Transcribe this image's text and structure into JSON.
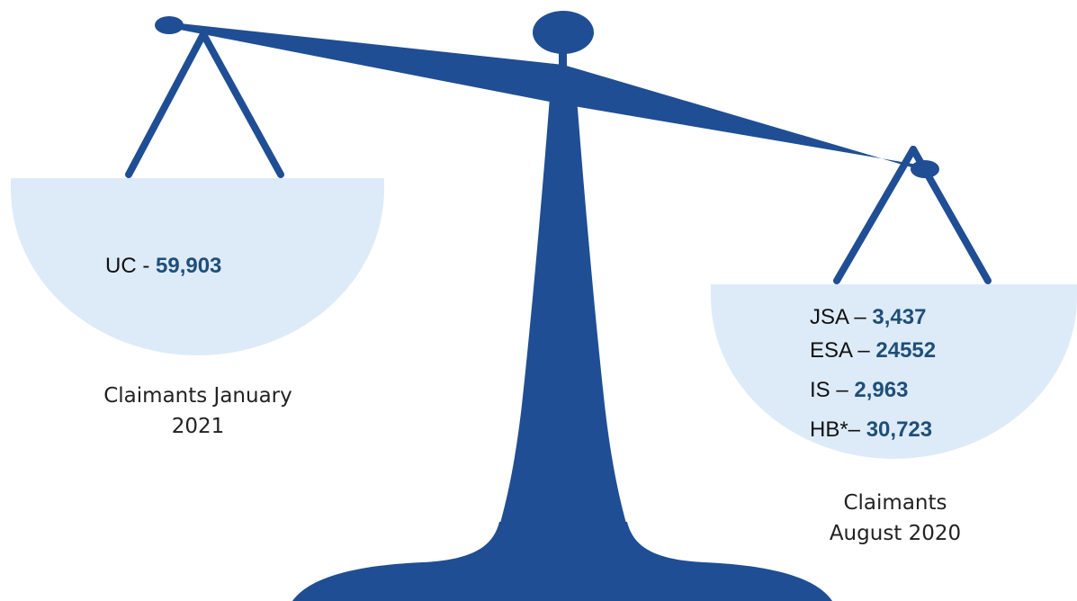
{
  "colors": {
    "scale": "#1f4e94",
    "pan_fill": "#ddebf8",
    "value_text": "#1f4e79",
    "label_text": "#111111"
  },
  "left_pan": {
    "lines": [
      {
        "label": "UC -",
        "value": "59,903"
      }
    ],
    "caption": [
      "Claimants January",
      "2021"
    ]
  },
  "right_pan": {
    "lines": [
      {
        "label": "JSA –",
        "value": "3,437"
      },
      {
        "label": "ESA –",
        "value": "24552"
      },
      {
        "label": "IS –",
        "value": "2,963"
      },
      {
        "label": "HB*–",
        "value": "30,723"
      }
    ],
    "caption": [
      "Claimants",
      "August 2020"
    ]
  }
}
